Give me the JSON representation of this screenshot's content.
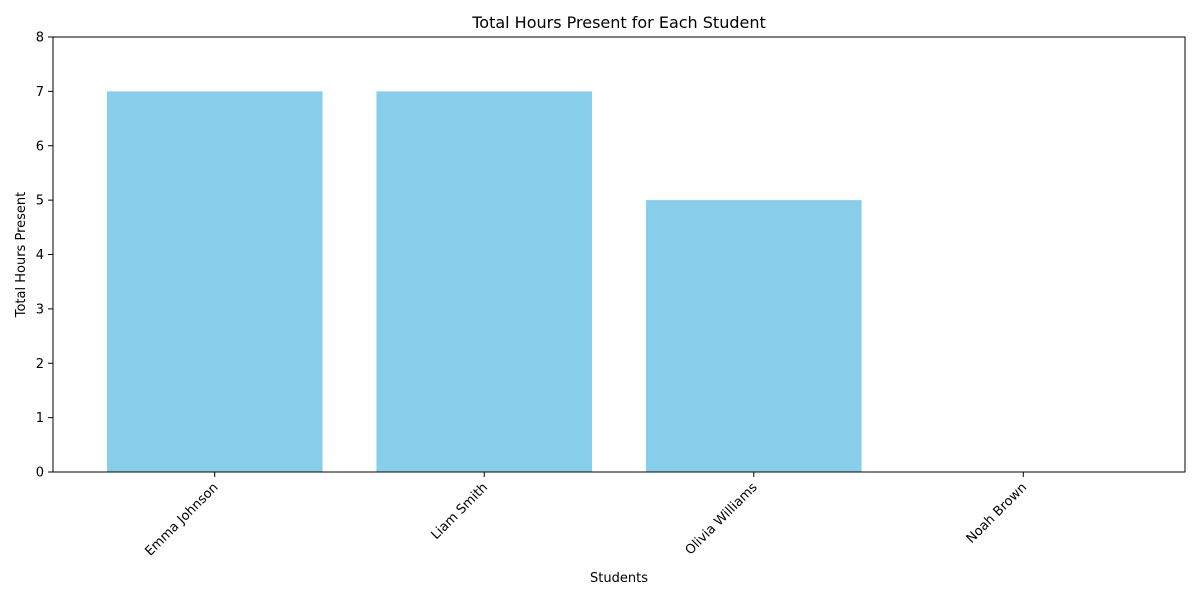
{
  "chart_data": {
    "type": "bar",
    "title": "Total Hours Present for Each Student",
    "xlabel": "Students",
    "ylabel": "Total Hours Present",
    "categories": [
      "Emma Johnson",
      "Liam Smith",
      "Olivia Williams",
      "Noah Brown"
    ],
    "values": [
      7,
      7,
      5,
      0
    ],
    "ylim": [
      0,
      8
    ],
    "yticks": [
      "0",
      "1",
      "2",
      "3",
      "4",
      "5",
      "6",
      "7",
      "8"
    ],
    "bar_color": "#87CEEB",
    "grid": false,
    "legend": "none"
  }
}
